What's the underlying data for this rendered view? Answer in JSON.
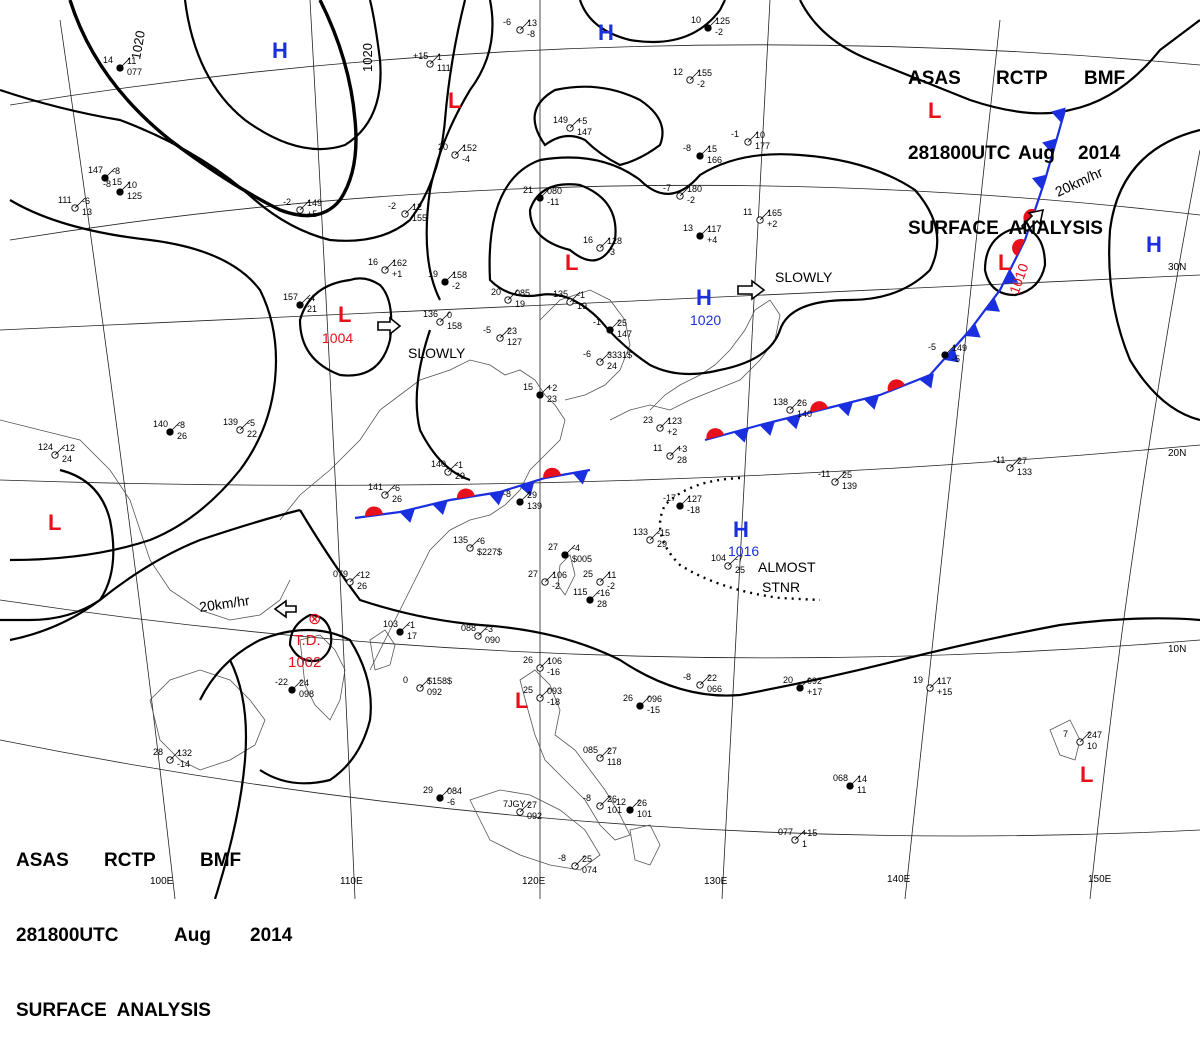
{
  "header": {
    "line1": [
      "ASAS",
      "RCTP",
      "BMF"
    ],
    "line2": [
      "281800UTC",
      "Aug",
      "2014"
    ],
    "line3": "SURFACE  ANALYSIS"
  },
  "colors": {
    "low": "#e8101a",
    "high": "#1a2fe0",
    "front_warm": "#e8101a",
    "front_cold": "#1a2fe0",
    "isobar": "#000000",
    "coast": "#555555"
  },
  "grid_labels": {
    "lon": [
      "100E",
      "110E",
      "120E",
      "130E",
      "140E",
      "150E"
    ],
    "lat": [
      "10N",
      "20N",
      "30N"
    ]
  },
  "isobar_labels": [
    "1020",
    "1020"
  ],
  "systems": [
    {
      "type": "H",
      "label": "H"
    },
    {
      "type": "H",
      "label": "H"
    },
    {
      "type": "H",
      "label": "H"
    },
    {
      "type": "H",
      "label": "H",
      "pressure": "1020"
    },
    {
      "type": "H",
      "label": "H",
      "pressure": "1016"
    },
    {
      "type": "L",
      "label": "L"
    },
    {
      "type": "L",
      "label": "L"
    },
    {
      "type": "L",
      "label": "L",
      "pressure": "1004"
    },
    {
      "type": "L",
      "label": "L",
      "pressure": "1010"
    },
    {
      "type": "L",
      "label": "L"
    },
    {
      "type": "L",
      "label": "L"
    },
    {
      "type": "L",
      "label": "L"
    },
    {
      "type": "TD",
      "label": "T.D.",
      "pressure": "1002"
    }
  ],
  "motion_texts": [
    "SLOWLY",
    "SLOWLY",
    "20km/hr",
    "20km/hr",
    "ALMOST",
    "STNR"
  ],
  "station_plots": [
    "14",
    "11",
    "077",
    "+15",
    "1",
    "111",
    "-6",
    "13",
    "-8",
    "10",
    "125",
    "-2",
    "12",
    "155",
    "-2",
    "149",
    "+5",
    "147",
    "-8",
    "15",
    "166",
    "-1",
    "10",
    "177",
    "-7",
    "180",
    "-2",
    "13",
    "117",
    "+4",
    "11",
    "165",
    "+2",
    "20",
    "152",
    "-4",
    "21",
    "080",
    "-11",
    "16",
    "128",
    "-3",
    "16",
    "162",
    "+1",
    "19",
    "158",
    "-2",
    "20",
    "085",
    "19",
    "135",
    "-1",
    "19",
    "157",
    "-4",
    "21",
    "136",
    "0",
    "158",
    "-5",
    "23",
    "127",
    "-1",
    "25",
    "147",
    "-6",
    "3331$",
    "24",
    "138",
    "26",
    "140",
    "-5",
    "149",
    "-5",
    "23",
    "123",
    "+2",
    "11",
    "+3",
    "28",
    "15",
    "+2",
    "23",
    "139",
    "-5",
    "22",
    "124",
    "-12",
    "24",
    "140",
    "-8",
    "26",
    "140",
    "-1",
    "29",
    "141",
    "-6",
    "26",
    "-8",
    "29",
    "139",
    "-11",
    "25",
    "139",
    "-11",
    "27",
    "133",
    "-17",
    "127",
    "-18",
    "133",
    "-15",
    "29",
    "135",
    "-6",
    "$227$",
    "27",
    "-4",
    "$005",
    "25",
    "11",
    "-2",
    "27",
    "106",
    "-2",
    "115",
    "-16",
    "28",
    "104",
    "-7",
    "25",
    "079",
    "-12",
    "26",
    "103",
    "-1",
    "17",
    "088",
    "-3",
    "090",
    "0",
    "$158$",
    "092",
    "-22",
    "24",
    "098",
    "26",
    "106",
    "-16",
    "25",
    "093",
    "-18",
    "26",
    "096",
    "-15",
    "085",
    "27",
    "118",
    "28",
    "132",
    "-14",
    "29",
    "084",
    "-6",
    "7JGY",
    "27",
    "092",
    "-8",
    "25",
    "074",
    "-12",
    "26",
    "101",
    "-8",
    "26",
    "101",
    "-8",
    "22",
    "066",
    "20",
    "092",
    "+17",
    "19",
    "117",
    "+15",
    "7",
    "247",
    "10",
    "068"
  ]
}
